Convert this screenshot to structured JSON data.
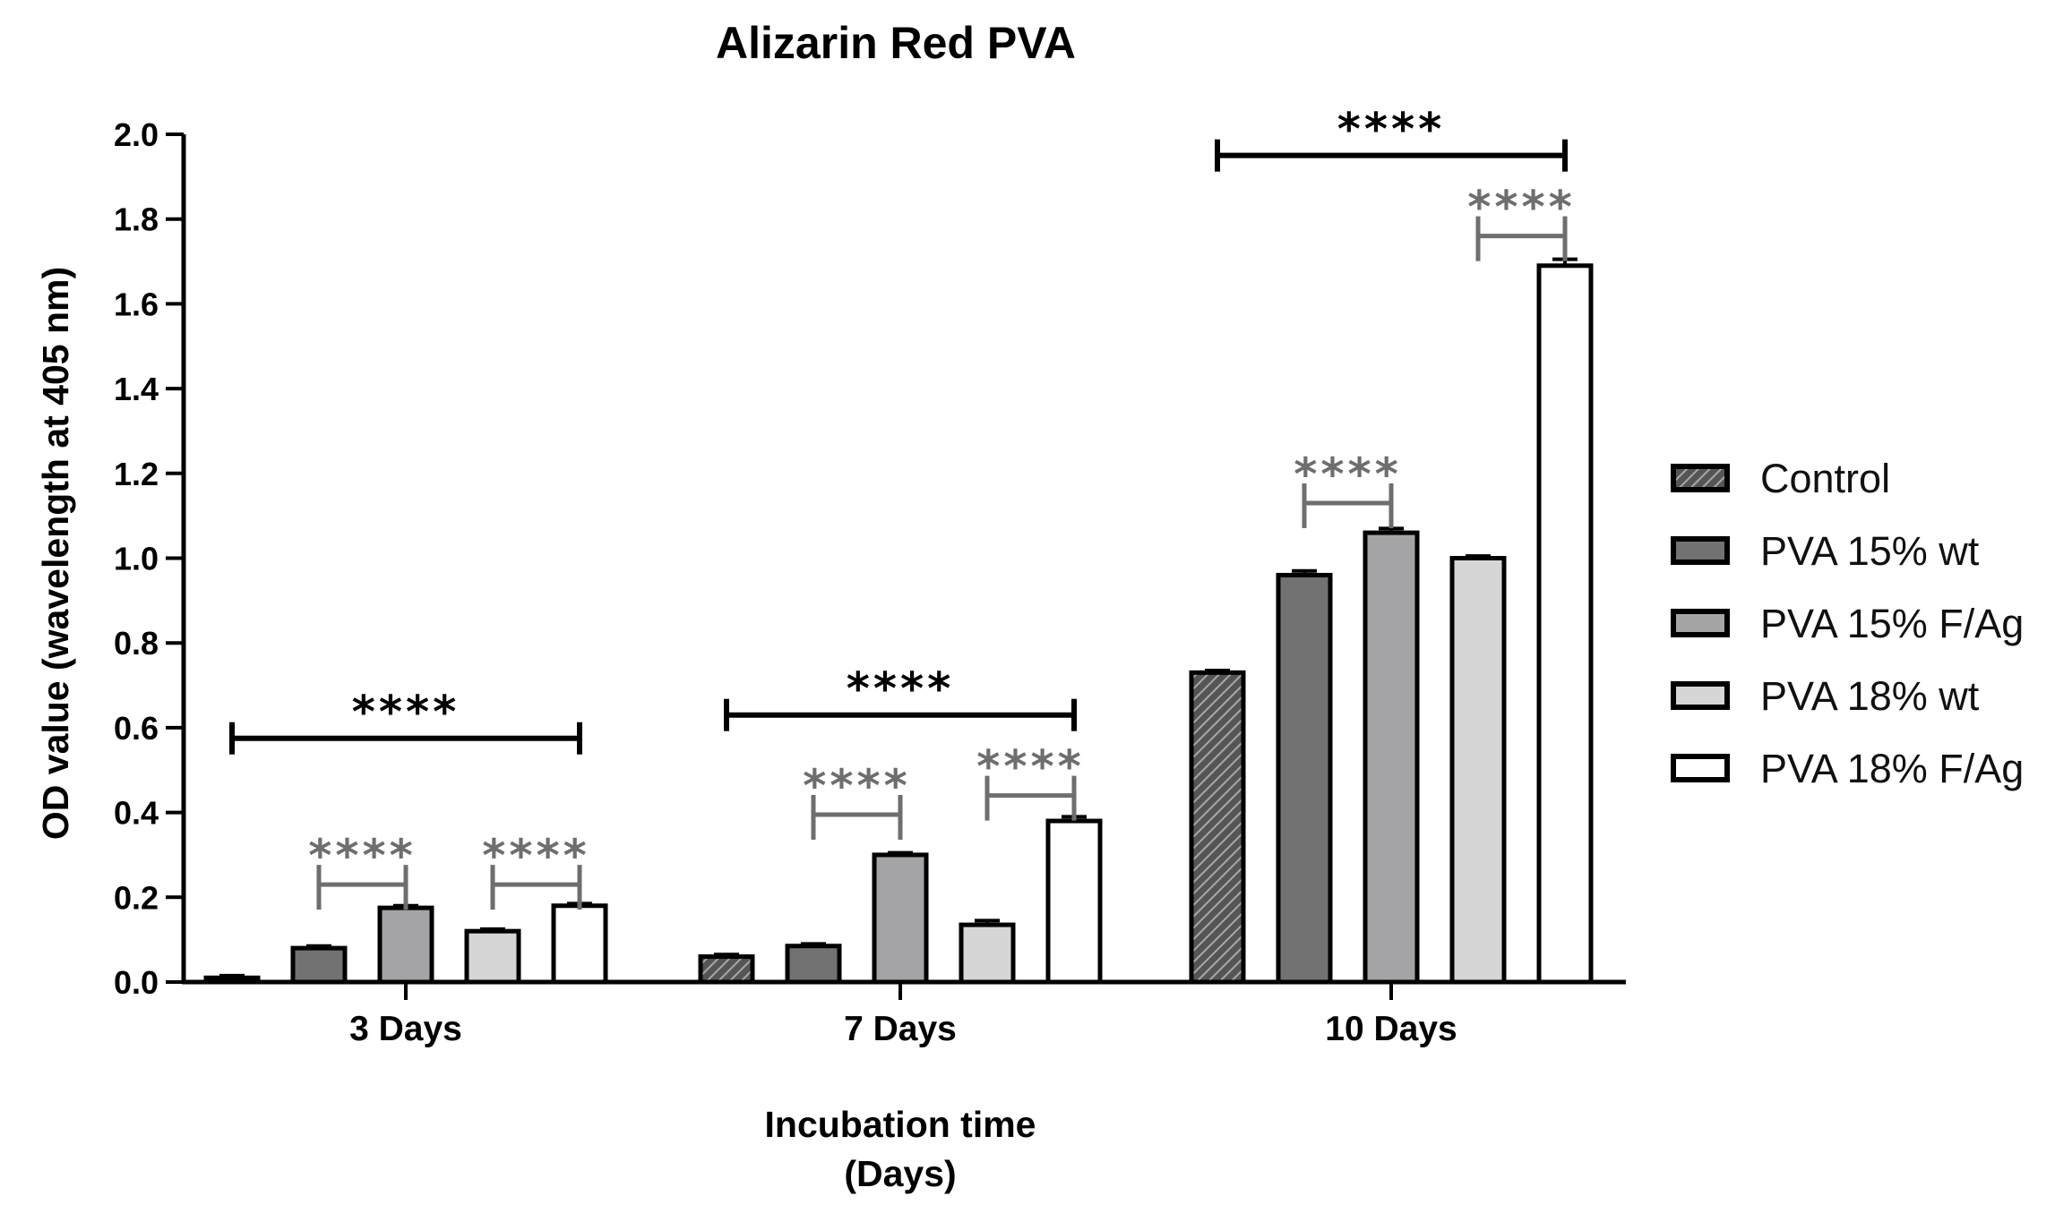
{
  "chart_data": {
    "type": "bar",
    "title": "Alizarin Red PVA",
    "xlabel_lines": [
      "Incubation time",
      "(Days)"
    ],
    "ylabel": "OD value (wavelength at 405 nm)",
    "ylim": [
      0,
      2.0
    ],
    "yticks": [
      0.0,
      0.2,
      0.4,
      0.6,
      0.8,
      1.0,
      1.2,
      1.4,
      1.6,
      1.8,
      2.0
    ],
    "ytick_labels": [
      "0.0",
      "0.2",
      "0.4",
      "0.6",
      "0.8",
      "1.0",
      "1.2",
      "1.4",
      "1.6",
      "1.8",
      "2.0"
    ],
    "categories": [
      "3 Days",
      "7 Days",
      "10 Days"
    ],
    "legend_position": "right",
    "series": [
      {
        "name": "Control",
        "values": [
          0.01,
          0.06,
          0.73
        ],
        "errors": [
          0.005,
          0.005,
          0.005
        ],
        "fill": "#6a6a6a",
        "pattern": "hatch"
      },
      {
        "name": "PVA 15% wt",
        "values": [
          0.08,
          0.085,
          0.96
        ],
        "errors": [
          0.005,
          0.005,
          0.01
        ],
        "fill": "#727272",
        "pattern": "solid"
      },
      {
        "name": "PVA 15% F/Ag",
        "values": [
          0.175,
          0.3,
          1.06
        ],
        "errors": [
          0.005,
          0.005,
          0.01
        ],
        "fill": "#a4a4a7",
        "pattern": "solid"
      },
      {
        "name": "PVA 18% wt",
        "values": [
          0.12,
          0.135,
          1.0
        ],
        "errors": [
          0.005,
          0.01,
          0.005
        ],
        "fill": "#d6d6d6",
        "pattern": "solid"
      },
      {
        "name": "PVA 18% F/Ag",
        "values": [
          0.18,
          0.38,
          1.69
        ],
        "errors": [
          0.005,
          0.01,
          0.015
        ],
        "fill": "#ffffff",
        "pattern": "solid"
      }
    ],
    "significance": [
      {
        "label": "****",
        "category": 0,
        "from": 0,
        "to": 4,
        "level": 0.575,
        "ends": "both",
        "color": "#000000"
      },
      {
        "label": "****",
        "category": 0,
        "from": 1,
        "to": 2,
        "level": 0.23,
        "ends": "down",
        "color": "#6e6e6e"
      },
      {
        "label": "****",
        "category": 0,
        "from": 3,
        "to": 4,
        "level": 0.23,
        "ends": "down",
        "color": "#6e6e6e"
      },
      {
        "label": "****",
        "category": 1,
        "from": 0,
        "to": 4,
        "level": 0.63,
        "ends": "both",
        "color": "#000000"
      },
      {
        "label": "****",
        "category": 1,
        "from": 1,
        "to": 2,
        "level": 0.395,
        "ends": "down",
        "color": "#6e6e6e"
      },
      {
        "label": "****",
        "category": 1,
        "from": 3,
        "to": 4,
        "level": 0.44,
        "ends": "down",
        "color": "#6e6e6e"
      },
      {
        "label": "****",
        "category": 2,
        "from": 0,
        "to": 4,
        "level": 1.95,
        "ends": "both",
        "color": "#000000"
      },
      {
        "label": "****",
        "category": 2,
        "from": 1,
        "to": 2,
        "level": 1.13,
        "ends": "down",
        "color": "#6e6e6e"
      },
      {
        "label": "****",
        "category": 2,
        "from": 3,
        "to": 4,
        "level": 1.76,
        "ends": "down",
        "color": "#6e6e6e"
      }
    ]
  }
}
